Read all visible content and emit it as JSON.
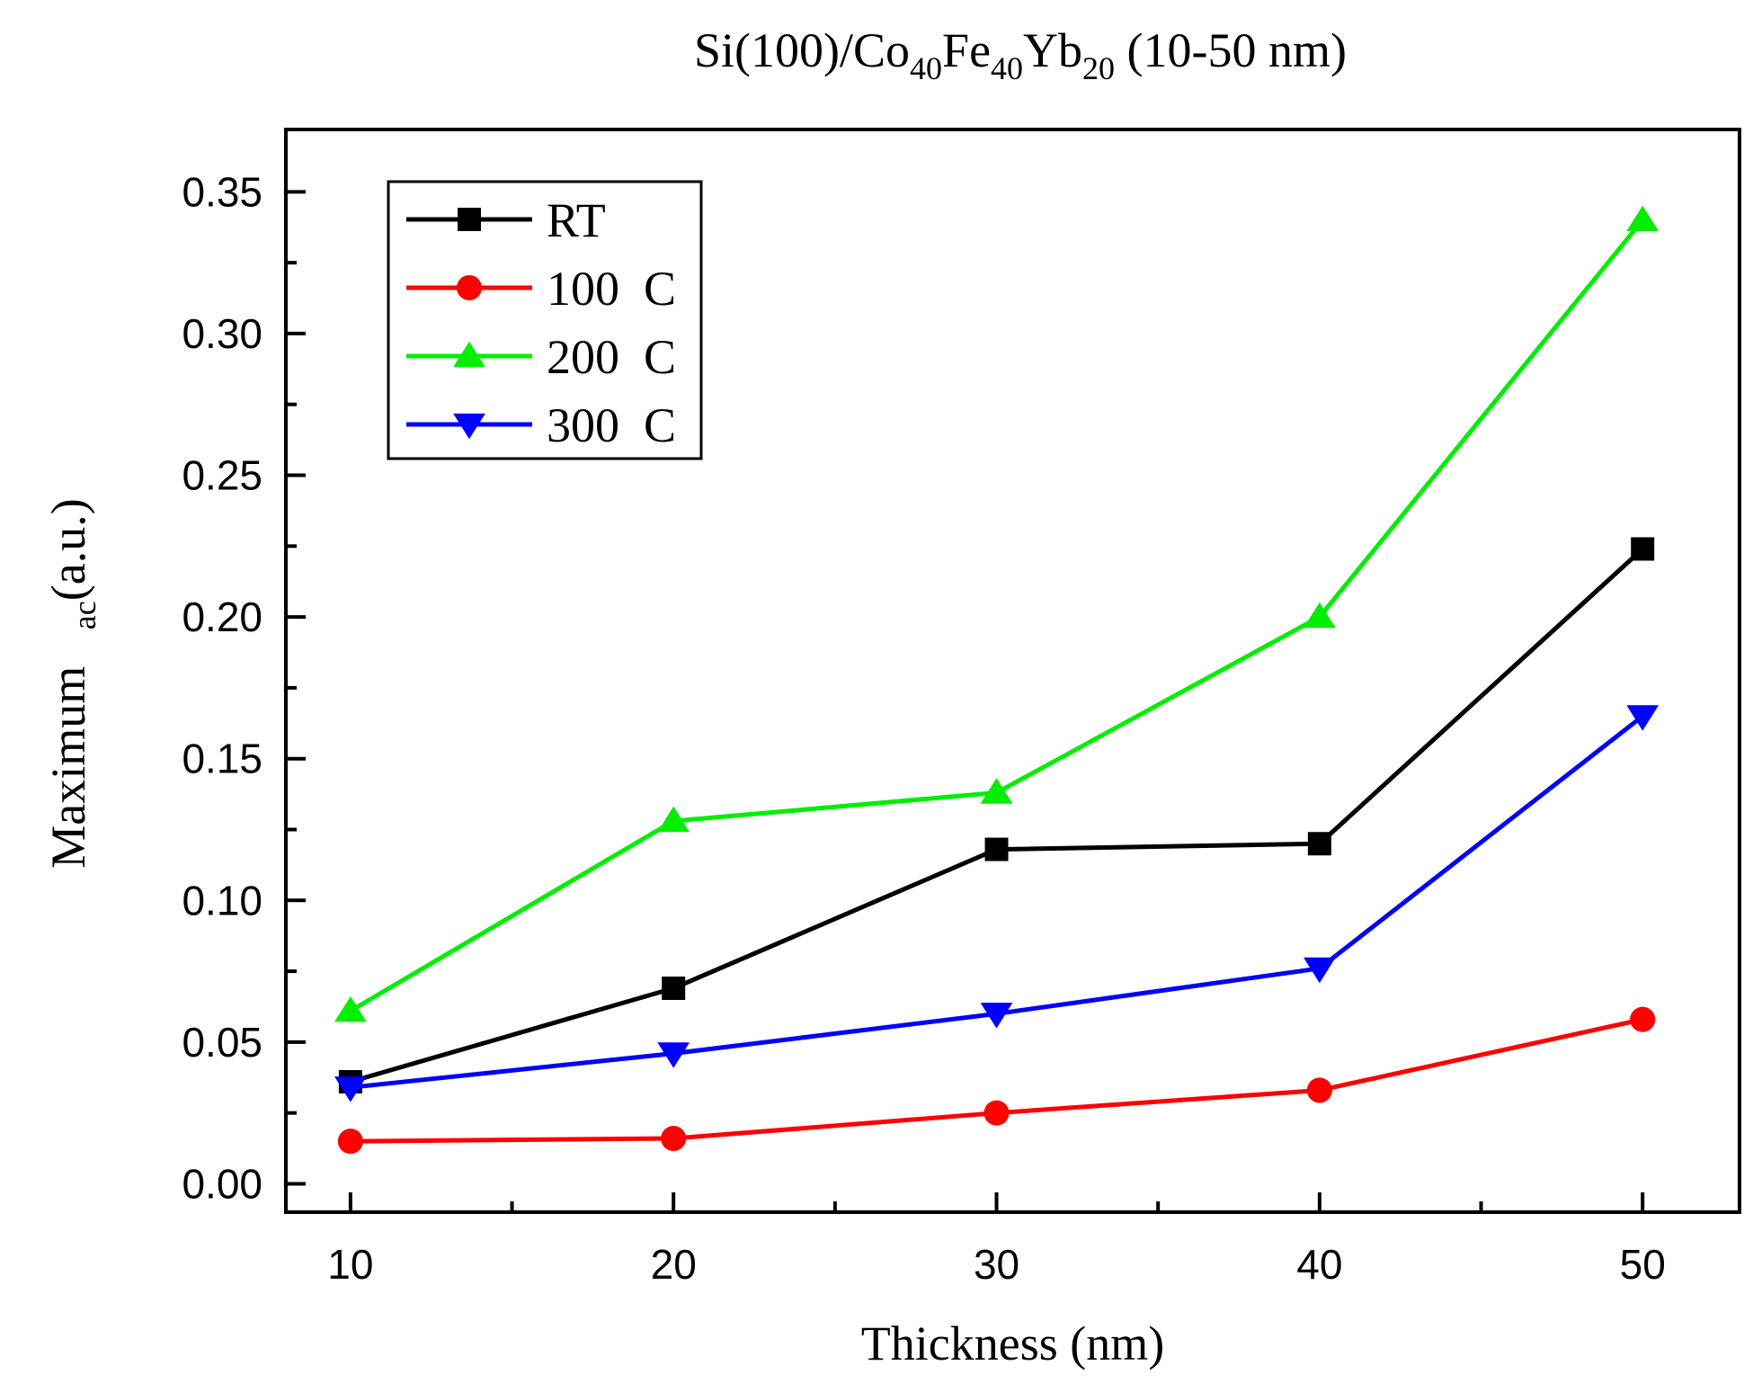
{
  "chart_data": {
    "type": "line",
    "title": {
      "parts": [
        {
          "text": "Si(100)/Co",
          "sub": false
        },
        {
          "text": "40",
          "sub": true
        },
        {
          "text": "Fe",
          "sub": false
        },
        {
          "text": "40",
          "sub": true
        },
        {
          "text": "Yb",
          "sub": false
        },
        {
          "text": "20",
          "sub": true
        },
        {
          "text": " (10-50 nm)",
          "sub": false
        }
      ]
    },
    "xlabel": "Thickness (nm)",
    "ylabel": {
      "main": "Maximum",
      "sub": "ac",
      "tail": "(a.u.)"
    },
    "xlim": [
      8,
      53
    ],
    "ylim": [
      -0.01,
      0.372
    ],
    "x_ticks": [
      10,
      20,
      30,
      40,
      50
    ],
    "x_tick_labels": [
      "10",
      "20",
      "30",
      "40",
      "50"
    ],
    "x_minor_ticks": [
      15,
      25,
      35,
      45
    ],
    "y_ticks": [
      0.0,
      0.05,
      0.1,
      0.15,
      0.2,
      0.25,
      0.3,
      0.35
    ],
    "y_tick_labels": [
      "0.00",
      "0.05",
      "0.10",
      "0.15",
      "0.20",
      "0.25",
      "0.30",
      "0.35"
    ],
    "y_minor_ticks": [
      0.025,
      0.075,
      0.125,
      0.175,
      0.225,
      0.275,
      0.325
    ],
    "x": [
      10,
      20,
      30,
      40,
      50
    ],
    "series": [
      {
        "name": "RT",
        "color": "#000000",
        "marker": "square",
        "values": [
          0.036,
          0.069,
          0.118,
          0.12,
          0.224
        ]
      },
      {
        "name": "100  C",
        "color": "#ff0000",
        "marker": "circle",
        "values": [
          0.015,
          0.016,
          0.025,
          0.033,
          0.058
        ]
      },
      {
        "name": "200  C",
        "color": "#00ee00",
        "marker": "triangle-up",
        "values": [
          0.061,
          0.128,
          0.138,
          0.2,
          0.34
        ]
      },
      {
        "name": "300  C",
        "color": "#0000ff",
        "marker": "triangle-down",
        "values": [
          0.034,
          0.046,
          0.06,
          0.076,
          0.165
        ]
      }
    ],
    "legend_position": "top-left",
    "grid": false
  }
}
